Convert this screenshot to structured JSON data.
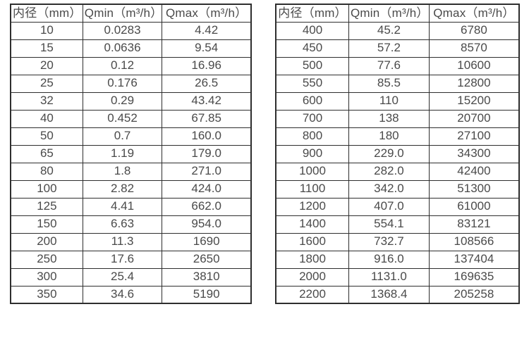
{
  "page": {
    "background_color": "#ffffff",
    "text_color": "#4a4a4a",
    "border_color": "#2e2e2e",
    "description": "Two side-by-side flow rate specification tables (inner diameter vs minimum and maximum flow)"
  },
  "tables": [
    {
      "name": "flow-table-small-diameters",
      "headers": [
        "内径（mm）",
        "Qmin（m³/h）",
        "Qmax（m³/h）"
      ],
      "rows": [
        [
          "10",
          "0.0283",
          "4.42"
        ],
        [
          "15",
          "0.0636",
          "9.54"
        ],
        [
          "20",
          "0.12",
          "16.96"
        ],
        [
          "25",
          "0.176",
          "26.5"
        ],
        [
          "32",
          "0.29",
          "43.42"
        ],
        [
          "40",
          "0.452",
          "67.85"
        ],
        [
          "50",
          "0.7",
          "160.0"
        ],
        [
          "65",
          "1.19",
          "179.0"
        ],
        [
          "80",
          "1.8",
          "271.0"
        ],
        [
          "100",
          "2.82",
          "424.0"
        ],
        [
          "125",
          "4.41",
          "662.0"
        ],
        [
          "150",
          "6.63",
          "954.0"
        ],
        [
          "200",
          "11.3",
          "1690"
        ],
        [
          "250",
          "17.6",
          "2650"
        ],
        [
          "300",
          "25.4",
          "3810"
        ],
        [
          "350",
          "34.6",
          "5190"
        ]
      ]
    },
    {
      "name": "flow-table-large-diameters",
      "headers": [
        "内径（mm）",
        "Qmin（m³/h）",
        "Qmax（m³/h）"
      ],
      "rows": [
        [
          "400",
          "45.2",
          "6780"
        ],
        [
          "450",
          "57.2",
          "8570"
        ],
        [
          "500",
          "77.6",
          "10600"
        ],
        [
          "550",
          "85.5",
          "12800"
        ],
        [
          "600",
          "110",
          "15200"
        ],
        [
          "700",
          "138",
          "20700"
        ],
        [
          "800",
          "180",
          "27100"
        ],
        [
          "900",
          "229.0",
          "34300"
        ],
        [
          "1000",
          "282.0",
          "42400"
        ],
        [
          "1100",
          "342.0",
          "51300"
        ],
        [
          "1200",
          "407.0",
          "61000"
        ],
        [
          "1400",
          "554.1",
          "83121"
        ],
        [
          "1600",
          "732.7",
          "108566"
        ],
        [
          "1800",
          "916.0",
          "137404"
        ],
        [
          "2000",
          "1131.0",
          "169635"
        ],
        [
          "2200",
          "1368.4",
          "205258"
        ]
      ]
    }
  ]
}
